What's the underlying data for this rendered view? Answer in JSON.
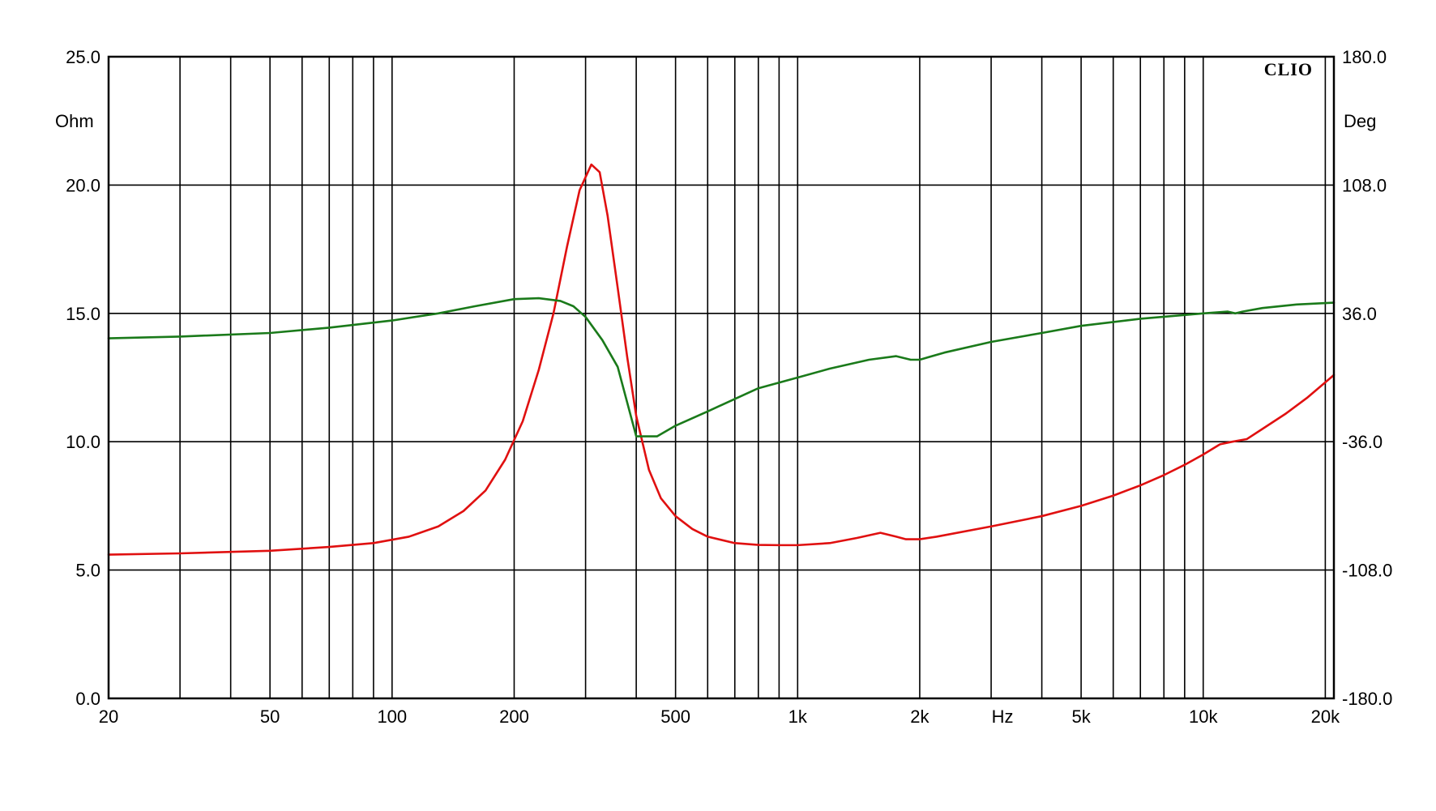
{
  "chart_data": {
    "type": "line",
    "title": "",
    "brand": "CLIO",
    "x_axis": {
      "scale": "log",
      "range": [
        20,
        21000
      ],
      "unit_label": "Hz",
      "tick_labels": [
        {
          "value": 20,
          "label": "20"
        },
        {
          "value": 50,
          "label": "50"
        },
        {
          "value": 100,
          "label": "100"
        },
        {
          "value": 200,
          "label": "200"
        },
        {
          "value": 500,
          "label": "500"
        },
        {
          "value": 1000,
          "label": "1k"
        },
        {
          "value": 2000,
          "label": "2k"
        },
        {
          "value": 5000,
          "label": "5k"
        },
        {
          "value": 10000,
          "label": "10k"
        },
        {
          "value": 20000,
          "label": "20k"
        }
      ],
      "unit_label_value": 3200,
      "gridlines": [
        20,
        30,
        40,
        50,
        60,
        70,
        80,
        90,
        100,
        200,
        300,
        400,
        500,
        600,
        700,
        800,
        900,
        1000,
        2000,
        3000,
        4000,
        5000,
        6000,
        7000,
        8000,
        9000,
        10000,
        20000
      ]
    },
    "y_left": {
      "unit_label": "Ohm",
      "range": [
        0,
        25
      ],
      "ticks": [
        0,
        5,
        10,
        15,
        20,
        25
      ],
      "tick_labels": [
        "0.0",
        "5.0",
        "10.0",
        "15.0",
        "20.0",
        "25.0"
      ],
      "unit_label_value": 22.5
    },
    "y_right": {
      "unit_label": "Deg",
      "range": [
        -180,
        180
      ],
      "ticks": [
        -180,
        -108,
        -36,
        36,
        108,
        180
      ],
      "tick_labels": [
        "-180.0",
        "-108.0",
        "-36.0",
        "36.0",
        "108.0",
        "180.0"
      ]
    },
    "grid": true,
    "series": [
      {
        "axis": "left",
        "color": "#e01010",
        "x": [
          20,
          30,
          50,
          70,
          90,
          110,
          130,
          150,
          170,
          190,
          210,
          230,
          250,
          270,
          290,
          310,
          325,
          340,
          360,
          380,
          400,
          430,
          460,
          500,
          550,
          600,
          700,
          800,
          900,
          1000,
          1200,
          1400,
          1600,
          1750,
          1850,
          2000,
          2200,
          3000,
          4000,
          5000,
          6000,
          7000,
          8000,
          9000,
          10000,
          11000,
          11800,
          12800,
          14000,
          16000,
          18000,
          21000
        ],
        "y": [
          5.6,
          5.65,
          5.75,
          5.9,
          6.05,
          6.3,
          6.7,
          7.3,
          8.1,
          9.3,
          10.8,
          12.8,
          15.0,
          17.6,
          19.8,
          20.8,
          20.5,
          18.8,
          16.0,
          13.3,
          11.0,
          8.9,
          7.8,
          7.1,
          6.6,
          6.3,
          6.05,
          5.98,
          5.97,
          5.97,
          6.05,
          6.25,
          6.45,
          6.3,
          6.2,
          6.2,
          6.3,
          6.7,
          7.1,
          7.5,
          7.9,
          8.3,
          8.7,
          9.1,
          9.5,
          9.9,
          10.0,
          10.1,
          10.5,
          11.1,
          11.7,
          12.6
        ]
      },
      {
        "axis": "right",
        "color": "#1a7a1a",
        "x": [
          20,
          30,
          50,
          70,
          100,
          130,
          160,
          200,
          230,
          260,
          280,
          300,
          330,
          360,
          400,
          450,
          500,
          600,
          700,
          800,
          1000,
          1200,
          1500,
          1750,
          1900,
          2000,
          2300,
          3000,
          4000,
          5000,
          7000,
          10000,
          11500,
          12000,
          12500,
          14000,
          17000,
          21000
        ],
        "y": [
          22,
          23,
          25,
          28,
          32,
          36,
          40,
          44,
          44.5,
          43,
          40,
          34,
          21,
          6,
          -33,
          -33,
          -27,
          -19,
          -12,
          -6,
          0,
          5,
          10,
          12,
          10,
          10,
          14,
          20,
          25,
          29,
          33,
          36,
          37,
          36,
          37,
          39,
          41,
          42
        ]
      }
    ]
  }
}
